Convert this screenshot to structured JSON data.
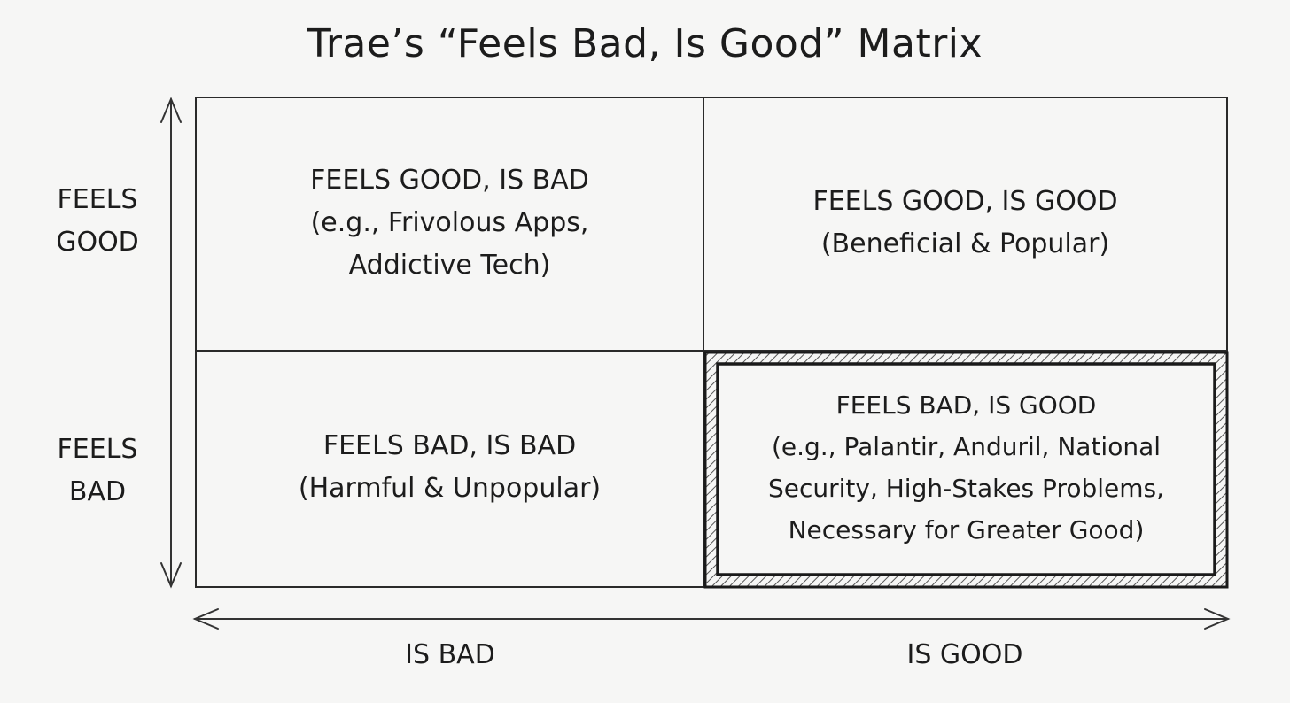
{
  "title": "Trae’s “Feels Bad, Is Good” Matrix",
  "y_axis": {
    "top_label": "FEELS\nGOOD",
    "bottom_label": "FEELS\nBAD"
  },
  "x_axis": {
    "left_label": "IS BAD",
    "right_label": "IS GOOD"
  },
  "quadrants": {
    "top_left": {
      "heading": "FEELS GOOD, IS BAD",
      "lines": [
        "(e.g., Frivolous Apps,",
        "Addictive Tech)"
      ]
    },
    "top_right": {
      "heading": "FEELS GOOD, IS GOOD",
      "lines": [
        "(Beneficial & Popular)"
      ]
    },
    "bottom_left": {
      "heading": "FEELS BAD, IS BAD",
      "lines": [
        "(Harmful & Unpopular)"
      ]
    },
    "bottom_right": {
      "heading": "FEELS BAD, IS GOOD",
      "lines": [
        "(e.g., Palantir, Anduril, National",
        "Security, High-Stakes Problems,",
        "Necessary for Greater Good)"
      ]
    }
  },
  "highlighted_quadrant": "bottom_right"
}
